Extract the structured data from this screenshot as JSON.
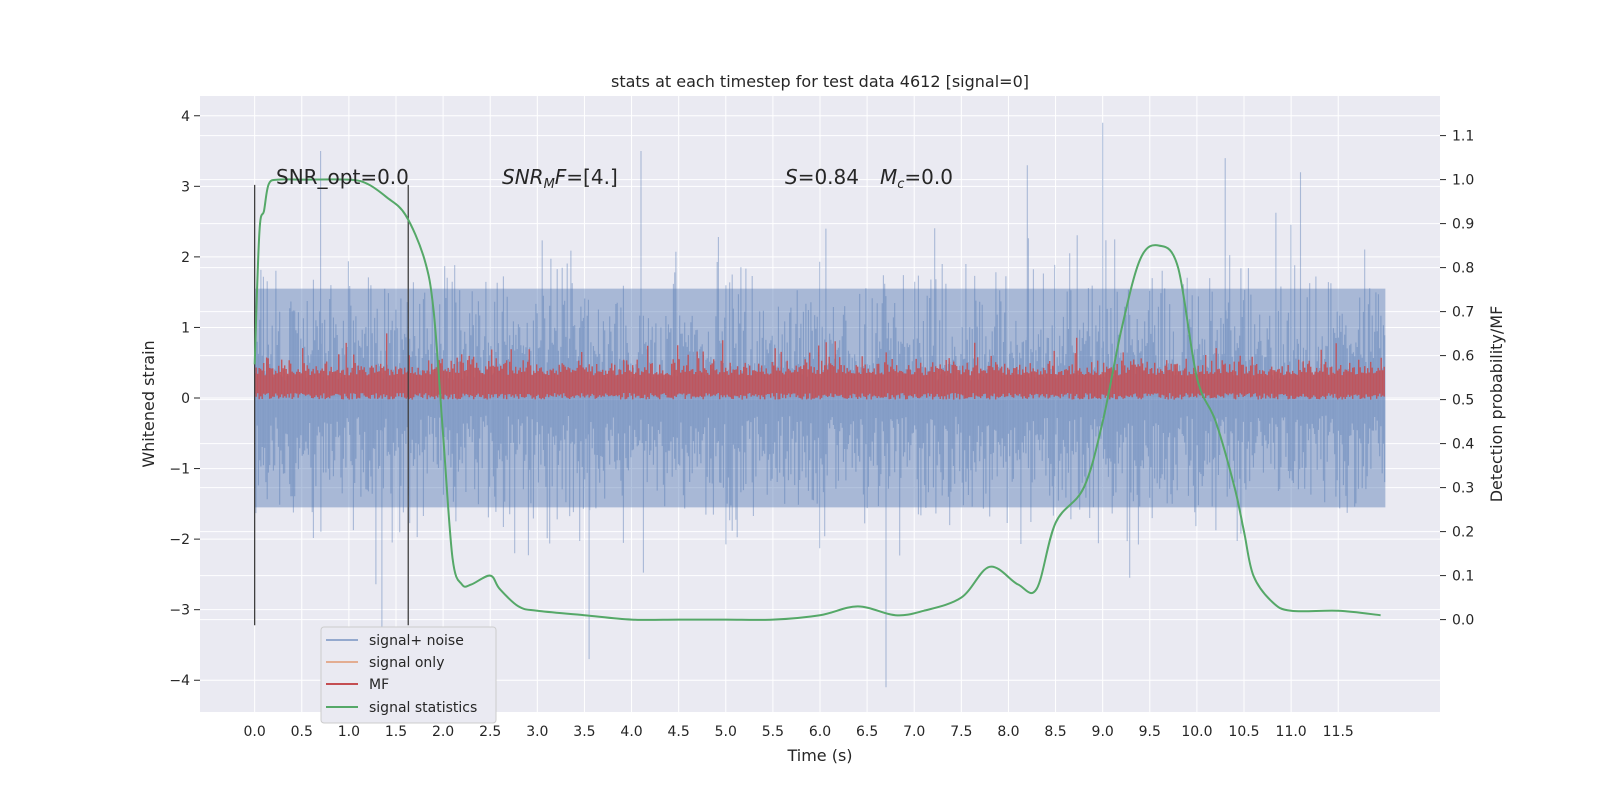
{
  "chart_data": {
    "type": "line",
    "title": "stats at each timestep for test data 4612 [signal=0]",
    "xlabel": "Time (s)",
    "ylabel": "Whitened strain",
    "ylabel_right": "Detection probability/MF",
    "xlim": [
      -0.58,
      12.58
    ],
    "ylim": [
      -4.45,
      4.28
    ],
    "ylim_right": [
      -0.21,
      1.19
    ],
    "x_ticks": [
      "0.0",
      "0.5",
      "1.0",
      "1.5",
      "2.0",
      "2.5",
      "3.0",
      "3.5",
      "4.0",
      "4.5",
      "5.0",
      "5.5",
      "6.0",
      "6.5",
      "7.0",
      "7.5",
      "8.0",
      "8.5",
      "9.0",
      "9.5",
      "10.0",
      "10.5",
      "11.0",
      "11.5"
    ],
    "y_ticks": [
      "4",
      "3",
      "2",
      "1",
      "0",
      "−1",
      "−2",
      "−3",
      "−4"
    ],
    "y_ticks_right": [
      "1.1",
      "1.0",
      "0.9",
      "0.8",
      "0.7",
      "0.6",
      "0.5",
      "0.4",
      "0.3",
      "0.2",
      "0.1",
      "0.0"
    ],
    "grid": true,
    "legend_position": "lower-left",
    "colors": {
      "signal_noise": "#4c72b0",
      "signal_only": "#dd8452",
      "mf": "#c44e52",
      "statistics": "#55a868",
      "vline": "#404040",
      "plot_bg": "#eaeaf2",
      "grid": "#ffffff"
    },
    "series": [
      {
        "name": "signal+ noise",
        "label": "signal+ noise",
        "description": "whitened strain, dense noise mostly within about ±2, extremes up to 3.9 and down to -4.1",
        "x_range": [
          0.0,
          12.0
        ],
        "envelope": [
          -2.2,
          2.2
        ]
      },
      {
        "name": "signal only",
        "label": "signal only",
        "x_range": [
          0.0,
          12.0
        ],
        "values": []
      },
      {
        "name": "MF",
        "label": "MF",
        "description": "matched filter output on right axis, fluctuating about 0.50-0.58, peaks near 0.67",
        "x_range": [
          0.0,
          12.0
        ],
        "envelope": [
          0.5,
          0.62
        ]
      },
      {
        "name": "signal statistics",
        "label": "signal statistics",
        "x": [
          0.0,
          0.05,
          0.1,
          0.15,
          0.25,
          0.5,
          1.0,
          1.2,
          1.4,
          1.6,
          1.8,
          1.9,
          2.0,
          2.1,
          2.2,
          2.3,
          2.5,
          2.6,
          2.8,
          3.0,
          3.5,
          4.0,
          4.5,
          5.0,
          5.5,
          6.0,
          6.4,
          6.8,
          7.1,
          7.5,
          7.8,
          8.1,
          8.3,
          8.5,
          8.8,
          9.0,
          9.2,
          9.4,
          9.6,
          9.8,
          10.0,
          10.2,
          10.4,
          10.5,
          10.6,
          10.8,
          11.0,
          11.5,
          11.95
        ],
        "y": [
          0.58,
          0.88,
          0.93,
          0.99,
          1.0,
          1.0,
          1.0,
          0.99,
          0.96,
          0.92,
          0.82,
          0.7,
          0.42,
          0.14,
          0.08,
          0.08,
          0.1,
          0.07,
          0.03,
          0.02,
          0.01,
          0.0,
          0.0,
          0.0,
          0.0,
          0.01,
          0.03,
          0.01,
          0.02,
          0.05,
          0.12,
          0.08,
          0.07,
          0.22,
          0.3,
          0.45,
          0.66,
          0.82,
          0.85,
          0.8,
          0.55,
          0.45,
          0.3,
          0.2,
          0.1,
          0.04,
          0.02,
          0.02,
          0.01
        ]
      }
    ],
    "vertical_lines": [
      {
        "x": 0.0,
        "y_range": [
          -3.22,
          3.02
        ]
      },
      {
        "x": 1.63,
        "y_range": [
          -3.22,
          3.02
        ]
      }
    ],
    "annotations": [
      {
        "id": "snr-opt",
        "text": "SNR_opt=0.0"
      },
      {
        "id": "snr-mf",
        "text": "SNR_MF=[4.]",
        "base": "SNR",
        "sub": "M",
        "rest": "F=[4.]"
      },
      {
        "id": "s-value",
        "text": "S=0.84",
        "italic": "S",
        "rest": "=0.84"
      },
      {
        "id": "mc-value",
        "text": "M_c=0.0",
        "italic": "M",
        "sub": "c",
        "rest": "=0.0"
      }
    ]
  }
}
